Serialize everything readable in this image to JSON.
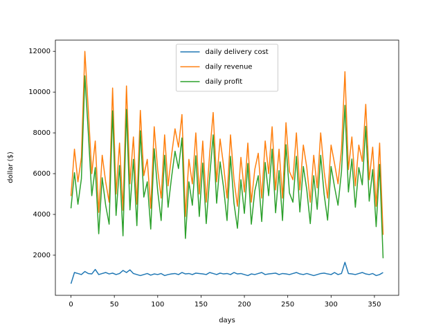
{
  "chart_data": {
    "type": "line",
    "xlabel": "days",
    "ylabel": "dollar ($)",
    "xlim": [
      -18,
      378
    ],
    "ylim": [
      30,
      12550
    ],
    "xticks": [
      0,
      50,
      100,
      150,
      200,
      250,
      300,
      350
    ],
    "yticks": [
      2000,
      4000,
      6000,
      8000,
      10000,
      12000
    ],
    "grid": false,
    "legend": "upper center",
    "x": [
      0,
      4,
      8,
      12,
      16,
      20,
      24,
      28,
      32,
      36,
      40,
      44,
      48,
      52,
      56,
      60,
      64,
      68,
      72,
      76,
      80,
      84,
      88,
      92,
      96,
      100,
      104,
      108,
      112,
      116,
      120,
      124,
      128,
      132,
      136,
      140,
      144,
      148,
      152,
      156,
      160,
      164,
      168,
      172,
      176,
      180,
      184,
      188,
      192,
      196,
      200,
      204,
      208,
      212,
      216,
      220,
      224,
      228,
      232,
      236,
      240,
      244,
      248,
      252,
      256,
      260,
      264,
      268,
      272,
      276,
      280,
      284,
      288,
      292,
      296,
      300,
      304,
      308,
      312,
      316,
      320,
      324,
      328,
      332,
      336,
      340,
      344,
      348,
      352,
      356,
      360
    ],
    "series": [
      {
        "name": "daily delivery cost",
        "color": "#1f77b4",
        "values": [
          600,
          1150,
          1100,
          1050,
          1200,
          1100,
          1080,
          1300,
          1050,
          1100,
          1150,
          1080,
          1120,
          1050,
          1100,
          1250,
          1150,
          1280,
          1100,
          1050,
          1000,
          1050,
          1100,
          1020,
          1080,
          1050,
          1100,
          1000,
          1050,
          1080,
          1100,
          1050,
          1150,
          1080,
          1100,
          1050,
          1120,
          1100,
          1080,
          1050,
          1150,
          1100,
          1050,
          1120,
          1080,
          1100,
          1050,
          1150,
          1080,
          1100,
          1050,
          1000,
          1080,
          1050,
          1100,
          1150,
          1050,
          1080,
          1100,
          1120,
          1050,
          1100,
          1080,
          1050,
          1100,
          1150,
          1080,
          1050,
          1100,
          1050,
          1000,
          1050,
          1100,
          1120,
          1080,
          1050,
          1150,
          1050,
          1100,
          1650,
          1100,
          1080,
          1050,
          1100,
          1150,
          1080,
          1050,
          1100,
          1000,
          1050,
          1150
        ]
      },
      {
        "name": "daily revenue",
        "color": "#ff7f0e",
        "values": [
          4900,
          7200,
          5600,
          6800,
          12000,
          9100,
          6000,
          7600,
          4100,
          6900,
          5600,
          4600,
          10200,
          5000,
          7500,
          4200,
          10300,
          5500,
          7800,
          4500,
          9100,
          5900,
          6700,
          4300,
          8300,
          6200,
          4800,
          7900,
          5400,
          6900,
          8200,
          7300,
          8900,
          3900,
          6700,
          5500,
          8000,
          5000,
          7600,
          4600,
          7000,
          9000,
          5600,
          7700,
          6400,
          4800,
          7900,
          5700,
          4400,
          6800,
          5100,
          7500,
          4600,
          6200,
          7000,
          4800,
          7600,
          6000,
          8300,
          5200,
          7200,
          4800,
          8500,
          6100,
          5700,
          8000,
          5200,
          7400,
          6300,
          4600,
          6900,
          5300,
          8000,
          6100,
          4800,
          7400,
          6500,
          5500,
          7200,
          11000,
          6200,
          7800,
          5400,
          7400,
          6600,
          9400,
          5700,
          7300,
          4400,
          7500,
          3000
        ]
      },
      {
        "name": "daily profit",
        "color": "#2ca02c",
        "values": [
          4300,
          6050,
          4500,
          5750,
          10800,
          8000,
          4920,
          6300,
          3050,
          5800,
          4450,
          3520,
          9080,
          3950,
          6400,
          2950,
          9150,
          4220,
          6700,
          3450,
          8100,
          4850,
          5600,
          3280,
          7220,
          5150,
          3700,
          6900,
          4350,
          5820,
          7100,
          6250,
          7750,
          2820,
          5600,
          4450,
          6880,
          3900,
          6520,
          3550,
          5850,
          7900,
          4550,
          6580,
          5320,
          3700,
          6850,
          4550,
          3320,
          5700,
          4050,
          6500,
          3520,
          5150,
          5900,
          3650,
          6550,
          4920,
          7200,
          4080,
          6150,
          3700,
          7420,
          5050,
          4600,
          6850,
          4120,
          6350,
          5200,
          3550,
          5900,
          4250,
          6900,
          4980,
          3720,
          6350,
          5350,
          4450,
          6100,
          9350,
          5100,
          6720,
          4350,
          6300,
          5450,
          8320,
          4650,
          6200,
          3400,
          6450,
          1850
        ]
      }
    ]
  }
}
